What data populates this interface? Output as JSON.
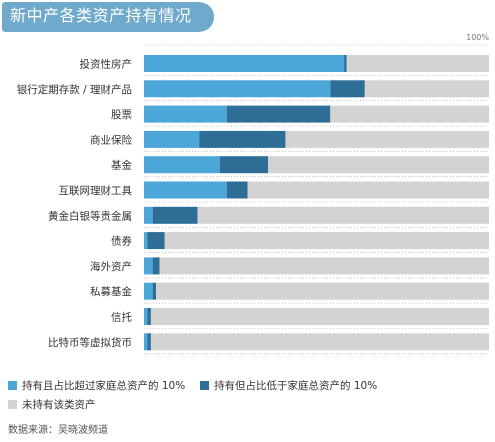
{
  "title": "新中产各类资产持有情况",
  "source": "数据来源：吴晓波频道",
  "colors": {
    "banner": "#6fa9cc",
    "light": "#4da6d8",
    "dark": "#2e6d96",
    "gray": "#d3d3d3",
    "grid": "#999999"
  },
  "chart_data": {
    "type": "bar",
    "orientation": "horizontal",
    "stacked": true,
    "xlim": [
      0,
      100
    ],
    "x_tick_label": "100%",
    "categories": [
      "投资性房产",
      "银行定期存款 / 理财产品",
      "股票",
      "商业保险",
      "基金",
      "互联网理财工具",
      "黄金白银等贵金属",
      "债券",
      "海外资产",
      "私募基金",
      "信托",
      "比特币等虚拟货币"
    ],
    "series": [
      {
        "name": "持有且占比超过家庭总资产的 10%",
        "color": "#4da6d8",
        "values": [
          58,
          54,
          24,
          16,
          22,
          24,
          2.5,
          1,
          2.5,
          2.5,
          1,
          1
        ]
      },
      {
        "name": "持有但占比低于家庭总资产的 10%",
        "color": "#2e6d96",
        "values": [
          0.7,
          10,
          30,
          25,
          14,
          6,
          13,
          5,
          2,
          1,
          1,
          1
        ]
      },
      {
        "name": "未持有该类资产",
        "color": "#d3d3d3",
        "values": [
          41.3,
          36,
          46,
          59,
          64,
          70,
          84.5,
          94,
          95.5,
          96.5,
          98,
          98
        ]
      }
    ]
  }
}
